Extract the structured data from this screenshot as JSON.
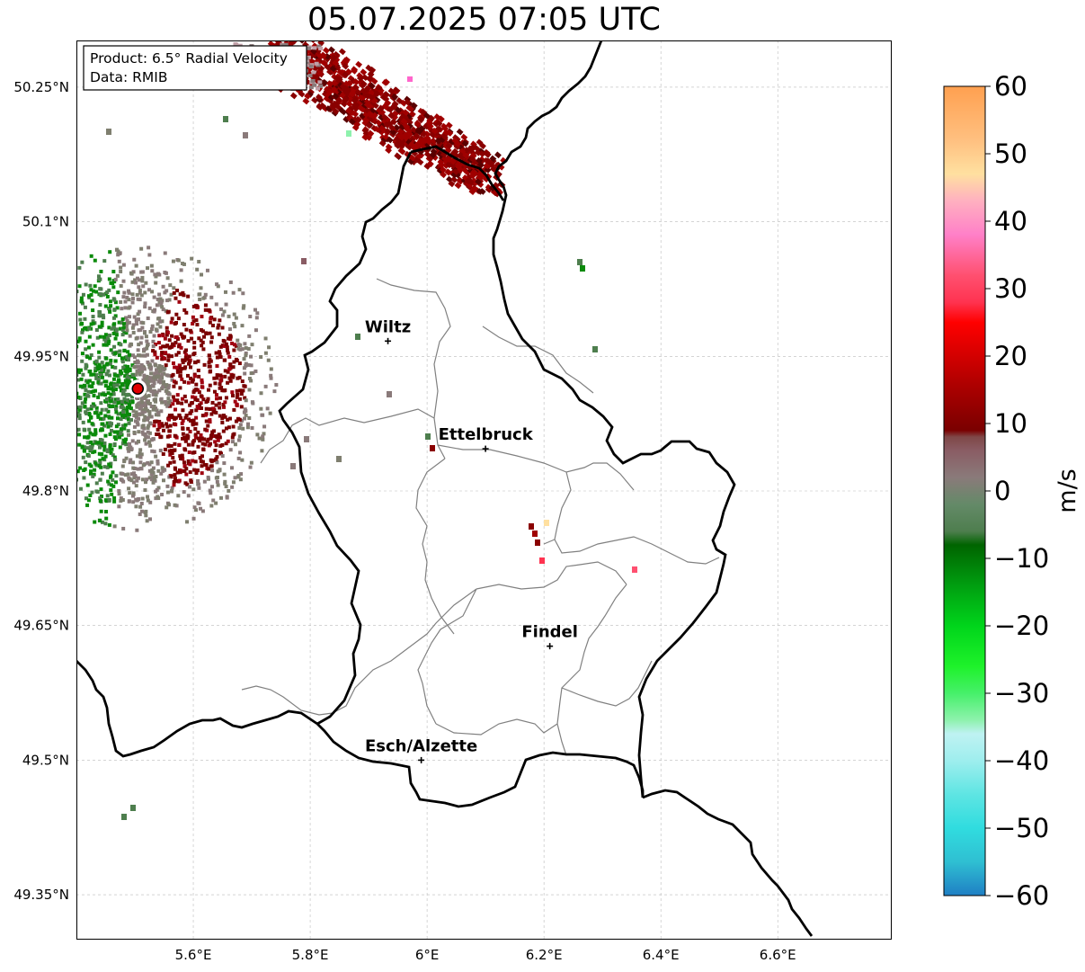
{
  "title": "05.07.2025 07:05 UTC",
  "info_box": {
    "product": "Product: 6.5° Radial Velocity",
    "data_source": "Data: RMIB"
  },
  "axes": {
    "x_ticks": [
      {
        "value": 5.6,
        "label": "5.6°E"
      },
      {
        "value": 5.8,
        "label": "5.8°E"
      },
      {
        "value": 6.0,
        "label": "6°E"
      },
      {
        "value": 6.2,
        "label": "6.2°E"
      },
      {
        "value": 6.4,
        "label": "6.4°E"
      },
      {
        "value": 6.6,
        "label": "6.6°E"
      }
    ],
    "y_ticks": [
      {
        "value": 50.25,
        "label": "50.25°N"
      },
      {
        "value": 50.1,
        "label": "50.1°N"
      },
      {
        "value": 49.95,
        "label": "49.95°N"
      },
      {
        "value": 49.8,
        "label": "49.8°N"
      },
      {
        "value": 49.65,
        "label": "49.65°N"
      },
      {
        "value": 49.5,
        "label": "49.5°N"
      },
      {
        "value": 49.35,
        "label": "49.35°N"
      }
    ],
    "lon_range": [
      5.4,
      6.795
    ],
    "lat_range": [
      49.3,
      50.302
    ],
    "grid": true
  },
  "cities": [
    {
      "name": "Wiltz",
      "lon": 5.933,
      "lat": 49.967
    },
    {
      "name": "Ettelbruck",
      "lon": 6.1,
      "lat": 49.847
    },
    {
      "name": "Findel",
      "lon": 6.21,
      "lat": 49.627
    },
    {
      "name": "Esch/Alzette",
      "lon": 5.99,
      "lat": 49.5
    }
  ],
  "radar_site": {
    "lon": 5.505,
    "lat": 49.914
  },
  "colorbar": {
    "label": "m/s",
    "min": -60,
    "max": 60,
    "ticks": [
      {
        "value": 60,
        "label": "60"
      },
      {
        "value": 50,
        "label": "50"
      },
      {
        "value": 40,
        "label": "40"
      },
      {
        "value": 30,
        "label": "30"
      },
      {
        "value": 20,
        "label": "20"
      },
      {
        "value": 10,
        "label": "10"
      },
      {
        "value": 0,
        "label": "0"
      },
      {
        "value": -10,
        "label": "−10"
      },
      {
        "value": -20,
        "label": "−20"
      },
      {
        "value": -30,
        "label": "−30"
      },
      {
        "value": -40,
        "label": "−40"
      },
      {
        "value": -50,
        "label": "−50"
      },
      {
        "value": -60,
        "label": "−60"
      }
    ],
    "stops": [
      {
        "v": -60,
        "c": "#1f7fc4"
      },
      {
        "v": -55,
        "c": "#2fbfd2"
      },
      {
        "v": -50,
        "c": "#30dcdf"
      },
      {
        "v": -45,
        "c": "#5ee5e3"
      },
      {
        "v": -40,
        "c": "#9eeeee"
      },
      {
        "v": -36,
        "c": "#bff2f2"
      },
      {
        "v": -34,
        "c": "#8ef2ad"
      },
      {
        "v": -30,
        "c": "#46f06a"
      },
      {
        "v": -26,
        "c": "#1ef22a"
      },
      {
        "v": -20,
        "c": "#00d51b"
      },
      {
        "v": -14,
        "c": "#009e10"
      },
      {
        "v": -8,
        "c": "#006400"
      },
      {
        "v": -6,
        "c": "#4e7e4e"
      },
      {
        "v": -2,
        "c": "#648a68"
      },
      {
        "v": 2,
        "c": "#8a7a7a"
      },
      {
        "v": 6,
        "c": "#8a5c64"
      },
      {
        "v": 8,
        "c": "#7f4848"
      },
      {
        "v": 9,
        "c": "#7a0000"
      },
      {
        "v": 16,
        "c": "#b00000"
      },
      {
        "v": 25,
        "c": "#ff0000"
      },
      {
        "v": 28,
        "c": "#ff3350"
      },
      {
        "v": 32,
        "c": "#ff5070"
      },
      {
        "v": 38,
        "c": "#ff80c8"
      },
      {
        "v": 43,
        "c": "#ffb0c0"
      },
      {
        "v": 47,
        "c": "#ffe0a0"
      },
      {
        "v": 52,
        "c": "#ffc080"
      },
      {
        "v": 60,
        "c": "#ffa050"
      }
    ]
  },
  "colors": {
    "approaching_green": "#0a8a0a",
    "receding_red": "#7a0000",
    "near_zero_grey": "#7f7f6f",
    "border_black": "#000000",
    "canton_grey": "#808080"
  }
}
